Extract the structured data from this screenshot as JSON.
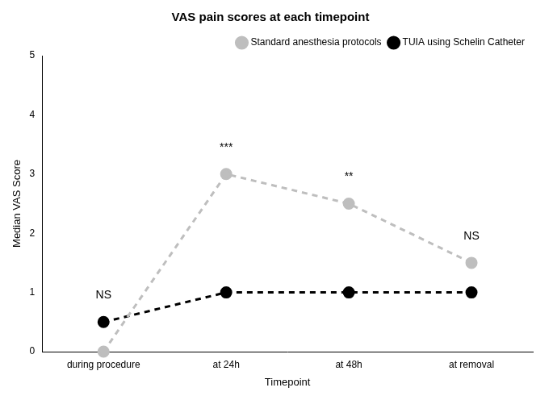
{
  "chart_data": {
    "type": "line",
    "title": "VAS pain scores at each timepoint",
    "x_label": "Timepoint",
    "y_label": "Median VAS Score",
    "categories": [
      "during procedure",
      "at 24h",
      "at 48h",
      "at removal"
    ],
    "series": [
      {
        "name": "Standard anesthesia protocols",
        "color": "#bebebe",
        "marker": "circle",
        "line_style": "dashed",
        "values": [
          0,
          3,
          2.5,
          1.5
        ]
      },
      {
        "name": "TUIA using Schelin Catheter",
        "color": "#000000",
        "marker": "circle",
        "line_style": "dashed",
        "values": [
          0.5,
          1,
          1,
          1
        ]
      }
    ],
    "annotations": [
      "NS",
      "***",
      "**",
      "NS"
    ],
    "ylim": [
      0,
      5
    ],
    "yticks": [
      0,
      1,
      2,
      3,
      4,
      5
    ],
    "grid": false,
    "legend": "upper right"
  }
}
